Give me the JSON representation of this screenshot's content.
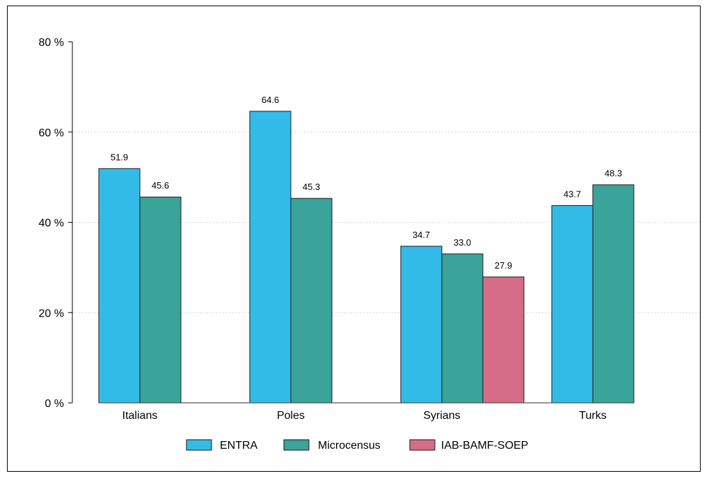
{
  "chart_data": {
    "type": "bar",
    "categories": [
      "Italians",
      "Poles",
      "Syrians",
      "Turks"
    ],
    "series": [
      {
        "name": "ENTRA",
        "color": "#33BBE8",
        "values": [
          51.9,
          64.6,
          34.7,
          43.7
        ]
      },
      {
        "name": "Microcensus",
        "color": "#3AA39A",
        "values": [
          45.6,
          45.3,
          33.0,
          48.3
        ]
      },
      {
        "name": "IAB-BAMF-SOEP",
        "color": "#D66D88",
        "values": [
          null,
          null,
          27.9,
          null
        ]
      }
    ],
    "data_labels": [
      [
        "51.9",
        "64.6",
        "34.7",
        "43.7"
      ],
      [
        "45.6",
        "45.3",
        "33.0",
        "48.3"
      ],
      [
        "",
        "",
        "27.9",
        ""
      ]
    ],
    "y_ticks": [
      0,
      20,
      40,
      60,
      80
    ],
    "y_tick_labels": [
      "0 %",
      "20 %",
      "40 %",
      "60 %",
      "80 %"
    ],
    "ylim": [
      0,
      80
    ],
    "grid": "horizontal-dotted",
    "legend_position": "bottom",
    "title": "",
    "xlabel": "",
    "ylabel": ""
  }
}
